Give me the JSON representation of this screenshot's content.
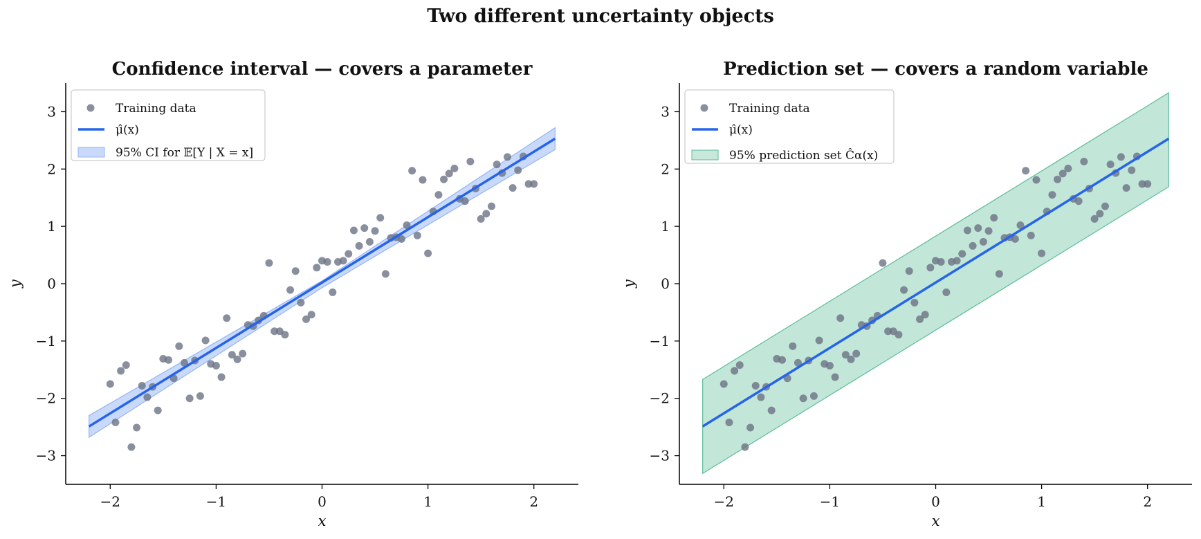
{
  "figure": {
    "suptitle": "Two different uncertainty objects"
  },
  "colors": {
    "points": "#6b7385",
    "fit": "#2563eb",
    "ci_band": "#93b4f5",
    "pi_band": "#8fd1b8",
    "pi_edge": "#5bbd99"
  },
  "chart_data": [
    {
      "type": "scatter",
      "title": "Confidence interval — covers a parameter",
      "xlabel": "x",
      "ylabel": "y",
      "xlim": [
        -2.42,
        2.42
      ],
      "ylim": [
        -3.5,
        3.5
      ],
      "xticks": [
        -2,
        -1,
        0,
        1,
        2
      ],
      "xtick_labels": [
        "−2",
        "−1",
        "0",
        "1",
        "2"
      ],
      "yticks": [
        -3,
        -2,
        -1,
        0,
        1,
        2,
        3
      ],
      "ytick_labels": [
        "−3",
        "−2",
        "−1",
        "0",
        "1",
        "2",
        "3"
      ],
      "grid": false,
      "legend_position": "upper-left",
      "legend": [
        "Training data",
        "μ̂(x)",
        "95% CI for 𝔼[Y | X = x]"
      ],
      "series": [
        {
          "name": "Training data",
          "kind": "points",
          "x": [
            -2.0,
            -1.95,
            -1.9,
            -1.85,
            -1.8,
            -1.75,
            -1.7,
            -1.65,
            -1.6,
            -1.55,
            -1.5,
            -1.45,
            -1.4,
            -1.35,
            -1.3,
            -1.25,
            -1.2,
            -1.15,
            -1.1,
            -1.05,
            -1.0,
            -0.95,
            -0.9,
            -0.85,
            -0.8,
            -0.75,
            -0.7,
            -0.65,
            -0.6,
            -0.55,
            -0.5,
            -0.45,
            -0.4,
            -0.35,
            -0.3,
            -0.25,
            -0.2,
            -0.15,
            -0.1,
            -0.05,
            0.0,
            0.05,
            0.1,
            0.15,
            0.2,
            0.25,
            0.3,
            0.35,
            0.4,
            0.45,
            0.5,
            0.55,
            0.6,
            0.65,
            0.7,
            0.75,
            0.8,
            0.85,
            0.9,
            0.95,
            1.0,
            1.05,
            1.1,
            1.15,
            1.2,
            1.25,
            1.3,
            1.35,
            1.4,
            1.45,
            1.5,
            1.55,
            1.6,
            1.65,
            1.7,
            1.75,
            1.8,
            1.85,
            1.9,
            1.95,
            2.0
          ],
          "y": [
            -1.75,
            -2.42,
            -1.52,
            -1.42,
            -2.85,
            -2.51,
            -1.78,
            -1.98,
            -1.8,
            -2.21,
            -1.31,
            -1.33,
            -1.65,
            -1.09,
            -1.38,
            -2.0,
            -1.34,
            -1.96,
            -0.99,
            -1.4,
            -1.43,
            -1.63,
            -0.6,
            -1.24,
            -1.32,
            -1.22,
            -0.72,
            -0.74,
            -0.64,
            -0.56,
            0.36,
            -0.83,
            -0.83,
            -0.89,
            -0.11,
            0.22,
            -0.33,
            -0.62,
            -0.54,
            0.28,
            0.4,
            0.38,
            -0.15,
            0.38,
            0.4,
            0.52,
            0.93,
            0.66,
            0.97,
            0.73,
            0.92,
            1.15,
            0.17,
            0.8,
            0.81,
            0.78,
            1.02,
            1.97,
            0.84,
            1.81,
            0.53,
            1.26,
            1.55,
            1.82,
            1.92,
            2.01,
            1.48,
            1.44,
            2.13,
            1.66,
            1.13,
            1.22,
            1.35,
            2.08,
            1.93,
            2.21,
            1.67,
            1.98,
            2.22,
            1.74,
            1.74
          ]
        },
        {
          "name": "μ̂(x)",
          "kind": "line",
          "x": [
            -2.2,
            2.2
          ],
          "y": [
            -2.49,
            2.53
          ]
        },
        {
          "name": "95% CI for 𝔼[Y | X = x]",
          "kind": "band",
          "x": [
            -2.2,
            0.0,
            2.2
          ],
          "lower": [
            -2.68,
            -0.07,
            2.34
          ],
          "upper": [
            -2.3,
            0.05,
            2.72
          ]
        }
      ]
    },
    {
      "type": "scatter",
      "title": "Prediction set — covers a random variable",
      "xlabel": "x",
      "ylabel": "y",
      "xlim": [
        -2.42,
        2.42
      ],
      "ylim": [
        -3.5,
        3.5
      ],
      "xticks": [
        -2,
        -1,
        0,
        1,
        2
      ],
      "xtick_labels": [
        "−2",
        "−1",
        "0",
        "1",
        "2"
      ],
      "yticks": [
        -3,
        -2,
        -1,
        0,
        1,
        2,
        3
      ],
      "ytick_labels": [
        "−3",
        "−2",
        "−1",
        "0",
        "1",
        "2",
        "3"
      ],
      "grid": false,
      "legend_position": "upper-left",
      "legend": [
        "Training data",
        "μ̂(x)",
        "95% prediction set Ĉα(x)"
      ],
      "series": [
        {
          "name": "Training data",
          "kind": "points",
          "same_as_first": true
        },
        {
          "name": "μ̂(x)",
          "kind": "line",
          "x": [
            -2.2,
            2.2
          ],
          "y": [
            -2.49,
            2.53
          ]
        },
        {
          "name": "95% prediction set Ĉα(x)",
          "kind": "band",
          "x": [
            -2.2,
            2.2
          ],
          "lower": [
            -3.31,
            1.69
          ],
          "upper": [
            -1.67,
            3.33
          ]
        }
      ]
    }
  ]
}
